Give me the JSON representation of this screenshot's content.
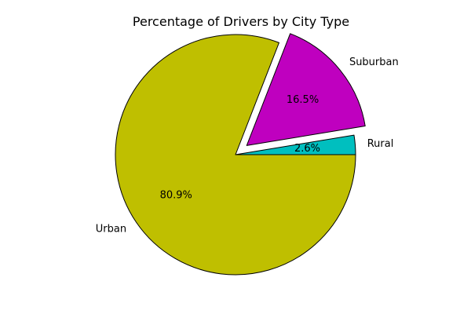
{
  "chart_data": {
    "type": "pie",
    "title": "Percentage of Drivers by City Type",
    "slices": [
      {
        "label": "Rural",
        "value": 2.6,
        "pct_label": "2.6%",
        "color": "#00bfbf",
        "exploded": false
      },
      {
        "label": "Suburban",
        "value": 16.5,
        "pct_label": "16.5%",
        "color": "#bf00bf",
        "exploded": true
      },
      {
        "label": "Urban",
        "value": 80.9,
        "pct_label": "80.9%",
        "color": "#bfbf00",
        "exploded": false
      }
    ],
    "start_angle_deg": 0,
    "direction": "counterclockwise",
    "edge_color": "#000000",
    "legend": "none"
  }
}
